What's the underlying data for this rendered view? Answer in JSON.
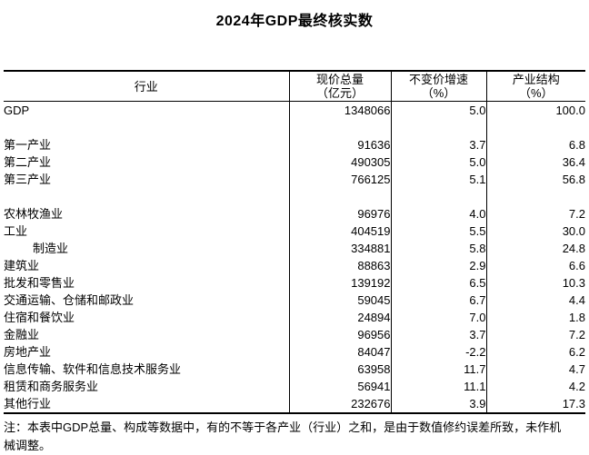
{
  "title": "2024年GDP最终核实数",
  "table": {
    "columns": [
      {
        "label": "行业",
        "unit": ""
      },
      {
        "label": "现价总量",
        "unit": "（亿元）"
      },
      {
        "label": "不变价增速",
        "unit": "（%）"
      },
      {
        "label": "产业结构",
        "unit": "（%）"
      }
    ],
    "rows": [
      {
        "industry": "GDP",
        "current_price_total": "1348066",
        "constant_price_growth": "5.0",
        "industry_structure": "100.0"
      },
      {
        "spacer": true
      },
      {
        "industry": "第一产业",
        "current_price_total": "91636",
        "constant_price_growth": "3.7",
        "industry_structure": "6.8"
      },
      {
        "industry": "第二产业",
        "current_price_total": "490305",
        "constant_price_growth": "5.0",
        "industry_structure": "36.4"
      },
      {
        "industry": "第三产业",
        "current_price_total": "766125",
        "constant_price_growth": "5.1",
        "industry_structure": "56.8"
      },
      {
        "spacer": true
      },
      {
        "industry": "农林牧渔业",
        "current_price_total": "96976",
        "constant_price_growth": "4.0",
        "industry_structure": "7.2"
      },
      {
        "industry": "工业",
        "current_price_total": "404519",
        "constant_price_growth": "5.5",
        "industry_structure": "30.0"
      },
      {
        "industry": "制造业",
        "indent": true,
        "current_price_total": "334881",
        "constant_price_growth": "5.8",
        "industry_structure": "24.8"
      },
      {
        "industry": "建筑业",
        "current_price_total": "88863",
        "constant_price_growth": "2.9",
        "industry_structure": "6.6"
      },
      {
        "industry": "批发和零售业",
        "current_price_total": "139192",
        "constant_price_growth": "6.5",
        "industry_structure": "10.3"
      },
      {
        "industry": "交通运输、仓储和邮政业",
        "current_price_total": "59045",
        "constant_price_growth": "6.7",
        "industry_structure": "4.4"
      },
      {
        "industry": "住宿和餐饮业",
        "current_price_total": "24894",
        "constant_price_growth": "7.0",
        "industry_structure": "1.8"
      },
      {
        "industry": "金融业",
        "current_price_total": "96956",
        "constant_price_growth": "3.7",
        "industry_structure": "7.2"
      },
      {
        "industry": "房地产业",
        "current_price_total": "84047",
        "constant_price_growth": "-2.2",
        "industry_structure": "6.2"
      },
      {
        "industry": "信息传输、软件和信息技术服务业",
        "current_price_total": "63958",
        "constant_price_growth": "11.7",
        "industry_structure": "4.7"
      },
      {
        "industry": "租赁和商务服务业",
        "current_price_total": "56941",
        "constant_price_growth": "11.1",
        "industry_structure": "4.2"
      },
      {
        "industry": "其他行业",
        "current_price_total": "232676",
        "constant_price_growth": "3.9",
        "industry_structure": "17.3"
      }
    ]
  },
  "note": "注：本表中GDP总量、构成等数据中，有的不等于各产业（行业）之和，是由于数值修约误差所致，未作机械调整。"
}
